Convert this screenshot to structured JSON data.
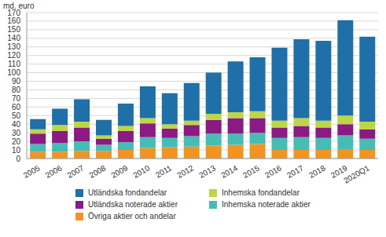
{
  "chart_data": {
    "type": "bar",
    "stacked": true,
    "grid": true,
    "legend": "bottom",
    "y_label": "md. euro",
    "categories": [
      "2005",
      "2006",
      "2007",
      "2008",
      "2009",
      "2010",
      "2011",
      "2012",
      "2013",
      "2014",
      "2015",
      "2016",
      "2017",
      "2018",
      "2019",
      "2020Q1"
    ],
    "ylim": [
      0,
      170
    ],
    "yticks": [
      0,
      10,
      20,
      30,
      40,
      50,
      60,
      70,
      80,
      90,
      100,
      110,
      120,
      130,
      140,
      150,
      160,
      170
    ],
    "series": [
      {
        "name": "Övriga aktier och andelar",
        "color": "#f29422",
        "values": [
          8,
          8,
          9,
          9,
          10,
          12,
          13,
          14,
          15,
          16,
          17,
          10,
          10,
          10,
          11,
          10
        ]
      },
      {
        "name": "Inhemska noterade aktier",
        "color": "#45bdb4",
        "values": [
          9,
          10,
          11,
          7,
          9,
          13,
          11,
          12,
          14,
          13,
          13,
          14,
          15,
          14,
          16,
          13
        ]
      },
      {
        "name": "Utländska noterade aktier",
        "color": "#8b1a84",
        "values": [
          12,
          14,
          16,
          7,
          13,
          16,
          11,
          13,
          16,
          18,
          17,
          12,
          13,
          12,
          13,
          11
        ]
      },
      {
        "name": "Inhemska fondandelar",
        "color": "#bcd645",
        "values": [
          5,
          7,
          7,
          4,
          6,
          6,
          5,
          5,
          7,
          7,
          8,
          8,
          9,
          8,
          10,
          9
        ]
      },
      {
        "name": "Utländska fondandelar",
        "color": "#1f6fa8",
        "values": [
          12,
          19,
          26,
          18,
          26,
          37,
          36,
          44,
          48,
          59,
          63,
          85,
          92,
          93,
          111,
          99
        ]
      }
    ]
  }
}
